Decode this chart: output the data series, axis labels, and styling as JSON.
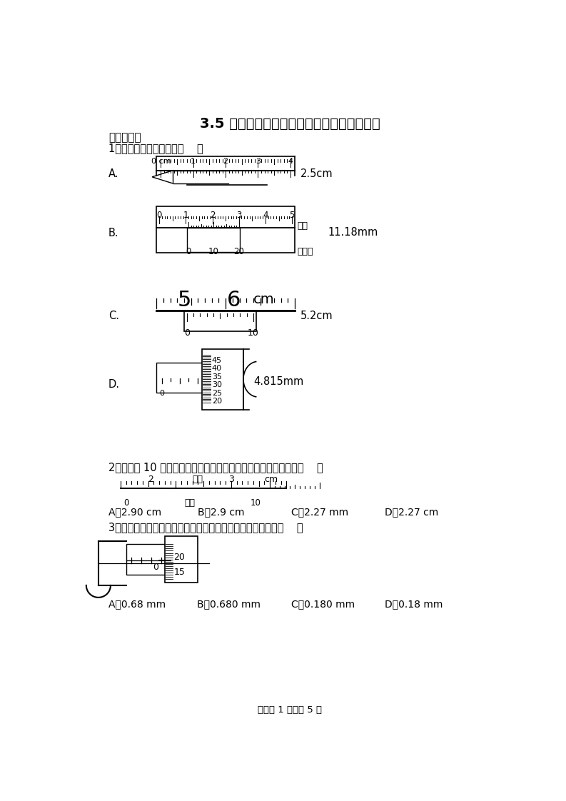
{
  "title": "3.5 科学测量：长度的测量及测量工具的选用",
  "section1": "一、单选题",
  "q1": "1．下列读数中正确的是（    ）",
  "q1_A_label": "A.",
  "q1_A_val": "2.5cm",
  "q1_B_label": "B.",
  "q1_B_val": "11.18mm",
  "q1_zhuchi": "主尺",
  "q1_youbiaochi": "游标尺",
  "q1_C_label": "C.",
  "q1_C_val": "5.2cm",
  "q1_D_label": "D.",
  "q1_D_val": "4.815mm",
  "q2": "2．如图为 10 分度的游标卡尺测量钢管内径时的示数，其示数为（    ）",
  "q2_zhuchi": "主尺",
  "q2_youbiao": "游标",
  "q2_cm": "cm",
  "q2_A": "A．2.90 cm",
  "q2_B": "B．2.9 cm",
  "q2_C": "C．2.27 mm",
  "q2_D": "D．2.27 cm",
  "q3": "3．用螺旋测微器测量一根金属丝的直径，如图所示的读数是（    ）",
  "q3_A": "A．0.68 mm",
  "q3_B": "B．0.680 mm",
  "q3_C": "C．0.180 mm",
  "q3_D": "D．0.18 mm",
  "footer": "试卷第 1 页，共 5 页",
  "bg_color": "#ffffff",
  "text_color": "#000000"
}
